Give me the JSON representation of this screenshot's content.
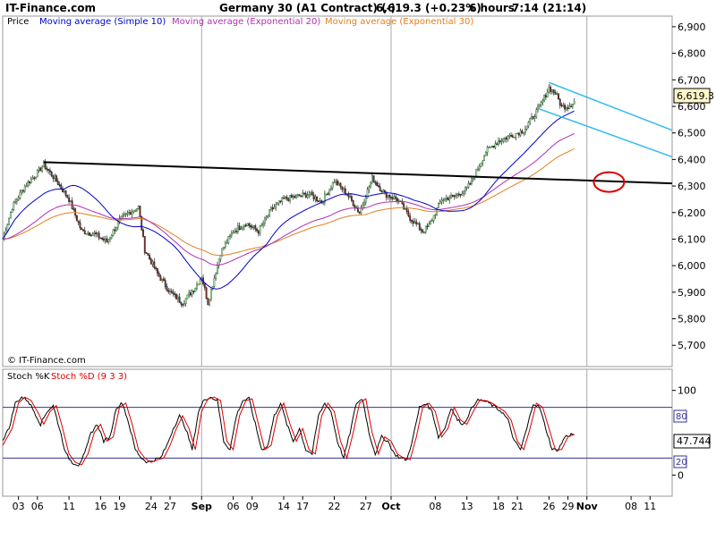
{
  "header": {
    "site": "IT-Finance.com",
    "instrument": "Germany 30 (A1 Contract) (-)",
    "quote": "6,619.3 (+0.23%)",
    "interval": "6 hours",
    "time": "7:14 (21:14)"
  },
  "watermark": "© IT-Finance.com",
  "colors": {
    "price_up": "#2e7d32",
    "price_down": "#b03020",
    "ma10": "#0000cc",
    "ma20": "#b030b0",
    "ma30": "#e08020",
    "channel": "#33bbee",
    "trendline": "#000000",
    "circle": "#dd0000",
    "stoch_k": "#000000",
    "stoch_d": "#dd0000",
    "stoch_band": "#333399"
  },
  "chart_data": [
    {
      "type": "line",
      "title": "Germany 30 (A1 Contract) (-)",
      "legend": [
        "Price",
        "Moving average (Simple 10)",
        "Moving average (Exponential 20)",
        "Moving average (Exponential 30)"
      ],
      "yticks": [
        "6,900",
        "6,800",
        "6,700",
        "6,600",
        "6,500",
        "6,400",
        "6,300",
        "6,200",
        "6,100",
        "6,000",
        "5,900",
        "5,800",
        "5,700"
      ],
      "ylim": [
        5620,
        6940
      ],
      "last_price_label": "6,619.3",
      "x_labels": [
        "03",
        "06",
        "11",
        "16",
        "19",
        "24",
        "27",
        "Sep",
        "06",
        "09",
        "14",
        "17",
        "22",
        "27",
        "Oct",
        "08",
        "13",
        "18",
        "21",
        "26",
        "29",
        "Nov",
        "08",
        "11"
      ],
      "x_label_days": [
        3,
        6,
        11,
        16,
        19,
        24,
        27,
        32,
        37,
        40,
        45,
        48,
        53,
        58,
        62,
        69,
        74,
        79,
        82,
        87,
        90,
        93,
        100,
        103
      ],
      "xlim": [
        0.5,
        106.5
      ],
      "close_points": [
        [
          0.5,
          6100
        ],
        [
          2,
          6220
        ],
        [
          4,
          6300
        ],
        [
          6,
          6350
        ],
        [
          7,
          6380
        ],
        [
          9,
          6320
        ],
        [
          11,
          6250
        ],
        [
          13,
          6130
        ],
        [
          15,
          6120
        ],
        [
          17,
          6090
        ],
        [
          19,
          6170
        ],
        [
          20.5,
          6200
        ],
        [
          22,
          6220
        ],
        [
          23,
          6060
        ],
        [
          25,
          5970
        ],
        [
          27,
          5900
        ],
        [
          29,
          5860
        ],
        [
          31,
          5920
        ],
        [
          32,
          5960
        ],
        [
          33,
          5860
        ],
        [
          35,
          6050
        ],
        [
          37,
          6130
        ],
        [
          39,
          6160
        ],
        [
          41,
          6130
        ],
        [
          43,
          6210
        ],
        [
          45,
          6250
        ],
        [
          47,
          6260
        ],
        [
          49,
          6270
        ],
        [
          51,
          6240
        ],
        [
          53,
          6320
        ],
        [
          55,
          6270
        ],
        [
          57,
          6200
        ],
        [
          59,
          6330
        ],
        [
          61,
          6270
        ],
        [
          63,
          6250
        ],
        [
          65,
          6180
        ],
        [
          67,
          6130
        ],
        [
          68,
          6150
        ],
        [
          70,
          6250
        ],
        [
          72,
          6260
        ],
        [
          74,
          6290
        ],
        [
          75,
          6330
        ],
        [
          77,
          6430
        ],
        [
          79,
          6470
        ],
        [
          81,
          6490
        ],
        [
          83,
          6510
        ],
        [
          85,
          6580
        ],
        [
          86,
          6620
        ],
        [
          87,
          6670
        ],
        [
          88,
          6650
        ],
        [
          89,
          6600
        ],
        [
          90,
          6600
        ],
        [
          91,
          6619
        ]
      ],
      "trendlines": [
        {
          "kind": "resistance",
          "from": [
            7,
            6390
          ],
          "to": [
            106.5,
            6310
          ]
        },
        {
          "kind": "channel-upper",
          "from": [
            87,
            6690
          ],
          "to": [
            106.5,
            6510
          ]
        },
        {
          "kind": "channel-lower",
          "from": [
            85.5,
            6590
          ],
          "to": [
            106.5,
            6410
          ]
        }
      ],
      "highlight_circle": {
        "center": [
          96.5,
          6315
        ]
      }
    },
    {
      "type": "line",
      "legend": [
        "Stoch %K",
        "Stoch %D (9 3 3)"
      ],
      "ylim": [
        -25,
        125
      ],
      "yticks": [
        "100",
        "0"
      ],
      "band_upper": 80,
      "band_lower": 20,
      "band_upper_label": "80",
      "band_lower_label": "20",
      "last_value_label": "47.744",
      "d_points": [
        [
          0.5,
          35
        ],
        [
          2,
          55
        ],
        [
          3,
          85
        ],
        [
          4,
          92
        ],
        [
          5,
          88
        ],
        [
          6,
          75
        ],
        [
          7,
          60
        ],
        [
          8,
          75
        ],
        [
          9,
          82
        ],
        [
          10,
          55
        ],
        [
          11,
          25
        ],
        [
          12,
          15
        ],
        [
          13,
          12
        ],
        [
          14,
          25
        ],
        [
          15,
          50
        ],
        [
          16,
          60
        ],
        [
          17,
          40
        ],
        [
          18,
          45
        ],
        [
          19,
          80
        ],
        [
          20,
          85
        ],
        [
          21,
          60
        ],
        [
          22,
          30
        ],
        [
          23,
          20
        ],
        [
          24,
          15
        ],
        [
          25,
          18
        ],
        [
          26,
          20
        ],
        [
          27,
          35
        ],
        [
          28,
          55
        ],
        [
          29,
          70
        ],
        [
          30,
          55
        ],
        [
          31,
          30
        ],
        [
          32,
          75
        ],
        [
          33,
          90
        ],
        [
          34,
          92
        ],
        [
          35,
          88
        ],
        [
          36,
          40
        ],
        [
          37,
          30
        ],
        [
          38,
          70
        ],
        [
          39,
          88
        ],
        [
          40,
          90
        ],
        [
          41,
          60
        ],
        [
          42,
          30
        ],
        [
          43,
          35
        ],
        [
          44,
          70
        ],
        [
          45,
          85
        ],
        [
          46,
          60
        ],
        [
          47,
          40
        ],
        [
          48,
          55
        ],
        [
          49,
          30
        ],
        [
          50,
          25
        ],
        [
          51,
          70
        ],
        [
          52,
          85
        ],
        [
          53,
          75
        ],
        [
          54,
          40
        ],
        [
          55,
          20
        ],
        [
          56,
          50
        ],
        [
          57,
          85
        ],
        [
          58,
          90
        ],
        [
          59,
          50
        ],
        [
          60,
          25
        ],
        [
          61,
          45
        ],
        [
          62,
          40
        ],
        [
          63,
          25
        ],
        [
          64,
          20
        ],
        [
          65,
          18
        ],
        [
          66,
          45
        ],
        [
          67,
          80
        ],
        [
          68,
          85
        ],
        [
          69,
          75
        ],
        [
          70,
          45
        ],
        [
          71,
          55
        ],
        [
          72,
          80
        ],
        [
          73,
          65
        ],
        [
          74,
          60
        ],
        [
          75,
          75
        ],
        [
          76,
          88
        ],
        [
          77,
          88
        ],
        [
          78,
          85
        ],
        [
          79,
          80
        ],
        [
          80,
          75
        ],
        [
          81,
          65
        ],
        [
          82,
          40
        ],
        [
          83,
          30
        ],
        [
          84,
          55
        ],
        [
          85,
          85
        ],
        [
          86,
          80
        ],
        [
          87,
          55
        ],
        [
          88,
          30
        ],
        [
          89,
          30
        ],
        [
          90,
          45
        ],
        [
          91,
          48
        ]
      ]
    }
  ]
}
